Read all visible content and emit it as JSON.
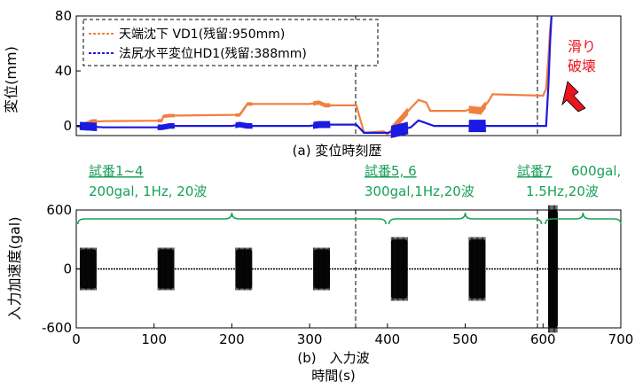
{
  "chart_data": [
    {
      "type": "line",
      "caption": "(a) 変位時刻歴",
      "ylabel": "変位(mm)",
      "ylim": [
        -7,
        80
      ],
      "yticks": [
        0,
        40,
        80
      ],
      "xlim": [
        0,
        700
      ],
      "grid": false,
      "legend_position": "top-left",
      "series": [
        {
          "name": "天端沈下 VD1(残留:950mm)",
          "color": "#f08040",
          "x": [
            0,
            8,
            20,
            35,
            110,
            112,
            120,
            200,
            210,
            220,
            300,
            312,
            320,
            360,
            370,
            395,
            400,
            430,
            440,
            450,
            455,
            500,
            505,
            520,
            530,
            535,
            600,
            604,
            607,
            609,
            611
          ],
          "y": [
            -1,
            0,
            3,
            3.5,
            3.8,
            7,
            7.5,
            8,
            8,
            16,
            16,
            17,
            15,
            15,
            -5,
            -4,
            -6,
            13,
            19,
            17,
            11,
            11,
            12,
            11,
            18,
            23,
            22,
            27,
            50,
            70,
            80
          ]
        },
        {
          "name": "法尻水平変位HD1(残留:388mm)",
          "color": "#1a1ae0",
          "x": [
            0,
            5,
            35,
            110,
            120,
            200,
            210,
            220,
            300,
            312,
            320,
            360,
            370,
            395,
            400,
            430,
            440,
            460,
            500,
            505,
            600,
            604,
            607,
            609,
            611
          ],
          "y": [
            0,
            0,
            -1,
            -1,
            0,
            0,
            1,
            0,
            0,
            1,
            1,
            1,
            -5,
            -5,
            -5,
            -1,
            4,
            0,
            0,
            0,
            0,
            0,
            30,
            60,
            80
          ]
        }
      ],
      "annotations": [
        "滑り",
        "破壊"
      ]
    },
    {
      "type": "line",
      "caption": "(b)　入力波",
      "xlabel": "時間(s)",
      "ylabel": "入力加速度(gal)",
      "ylim": [
        -600,
        600
      ],
      "yticks": [
        -600,
        0,
        600
      ],
      "xlim": [
        0,
        700
      ],
      "xticks": [
        0,
        100,
        200,
        300,
        400,
        500,
        600,
        700
      ],
      "grid": false,
      "series": [
        {
          "name": "",
          "color": "#000000",
          "bursts": [
            {
              "start": 5,
              "end": 26,
              "amplitude": 200
            },
            {
              "start": 105,
              "end": 126,
              "amplitude": 200
            },
            {
              "start": 205,
              "end": 226,
              "amplitude": 200
            },
            {
              "start": 305,
              "end": 326,
              "amplitude": 200
            },
            {
              "start": 405,
              "end": 426,
              "amplitude": 300
            },
            {
              "start": 505,
              "end": 526,
              "amplitude": 300
            },
            {
              "start": 607,
              "end": 619,
              "amplitude": 600
            }
          ]
        }
      ],
      "groups": [
        {
          "label_line1": "試番1~4",
          "label_line2": "200gal, 1Hz, 20波",
          "range": [
            2,
            398
          ]
        },
        {
          "label_line1": "試番5, 6",
          "label_line2": "300gal,1Hz,20波",
          "range": [
            402,
            598
          ]
        },
        {
          "label_line1": "試番7",
          "label_line1b": "600gal,",
          "label_line2": "1.5Hz,20波",
          "range": [
            603,
            700
          ]
        }
      ]
    }
  ],
  "colors": {
    "vd1": "#f08040",
    "hd1": "#1a1ae0",
    "accent_green": "#1aa05a",
    "accent_red": "#e8141e"
  }
}
